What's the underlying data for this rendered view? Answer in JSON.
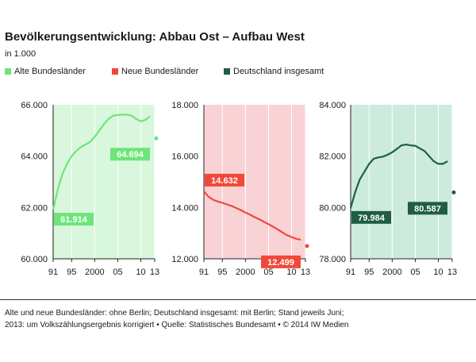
{
  "title": "Bevölkerungsentwicklung: Abbau Ost – Aufbau West",
  "subtitle": "in 1.000",
  "legend": [
    {
      "label": "Alte Bundesländer",
      "color": "#6ee57a"
    },
    {
      "label": "Neue Bundesländer",
      "color": "#f2483a"
    },
    {
      "label": "Deutschland insgesamt",
      "color": "#1f5e45"
    }
  ],
  "footnote_line1": "Alte und neue Bundesländer: ohne Berlin; Deutschland insgesamt: mit Berlin; Stand jeweils Juni;",
  "footnote_line2": "2013: um Volkszählungsergebnis korrigiert • Quelle: Statistisches Bundesamt • © 2014 IW Medien",
  "chart_data": [
    {
      "type": "line",
      "series_name": "Alte Bundesländer",
      "color": "#6ee57a",
      "bg_color": "#d9f7dc",
      "x_tick_labels": [
        "91",
        "95",
        "2000",
        "05",
        "10",
        "13"
      ],
      "x_ticks": [
        1991,
        1995,
        2000,
        2005,
        2010,
        2013
      ],
      "xlim": [
        1991,
        2013
      ],
      "ylim": [
        60000,
        66000
      ],
      "y_ticks": [
        60000,
        62000,
        64000,
        66000
      ],
      "y_tick_labels": [
        "60.000",
        "62.000",
        "64.000",
        "66.000"
      ],
      "x": [
        1991,
        1992,
        1993,
        1994,
        1995,
        1996,
        1997,
        1998,
        1999,
        2000,
        2001,
        2002,
        2003,
        2004,
        2005,
        2006,
        2007,
        2008,
        2009,
        2010,
        2011,
        2012
      ],
      "y": [
        61914,
        62700,
        63300,
        63700,
        64000,
        64200,
        64350,
        64450,
        64550,
        64750,
        65000,
        65250,
        65450,
        65580,
        65600,
        65620,
        65610,
        65580,
        65450,
        65350,
        65420,
        65550
      ],
      "point_2013": 64694,
      "labels": [
        {
          "x": 1991,
          "y": 61914,
          "text": "61.914",
          "side": "below"
        },
        {
          "x": 2013,
          "y": 64694,
          "text": "64.694",
          "side": "left"
        }
      ]
    },
    {
      "type": "line",
      "series_name": "Neue Bundesländer",
      "color": "#f2483a",
      "bg_color": "#f9d2d6",
      "x_tick_labels": [
        "91",
        "95",
        "2000",
        "05",
        "10",
        "13"
      ],
      "x_ticks": [
        1991,
        1995,
        2000,
        2005,
        2010,
        2013
      ],
      "xlim": [
        1991,
        2013
      ],
      "ylim": [
        12000,
        18000
      ],
      "y_ticks": [
        12000,
        14000,
        16000,
        18000
      ],
      "y_tick_labels": [
        "12.000",
        "14.000",
        "16.000",
        "18.000"
      ],
      "x": [
        1991,
        1992,
        1993,
        1994,
        1995,
        1996,
        1997,
        1998,
        1999,
        2000,
        2001,
        2002,
        2003,
        2004,
        2005,
        2006,
        2007,
        2008,
        2009,
        2010,
        2011,
        2012
      ],
      "y": [
        14632,
        14420,
        14300,
        14230,
        14180,
        14120,
        14060,
        13980,
        13900,
        13800,
        13720,
        13620,
        13540,
        13440,
        13350,
        13250,
        13140,
        13030,
        12920,
        12850,
        12780,
        12740
      ],
      "point_2013": 12499,
      "labels": [
        {
          "x": 1991,
          "y": 14632,
          "text": "14.632",
          "side": "above"
        },
        {
          "x": 2013,
          "y": 12499,
          "text": "12.499",
          "side": "left"
        }
      ]
    },
    {
      "type": "line",
      "series_name": "Deutschland insgesamt",
      "color": "#1f5e45",
      "bg_color": "#cdebdc",
      "x_tick_labels": [
        "91",
        "95",
        "2000",
        "05",
        "10",
        "13"
      ],
      "x_ticks": [
        1991,
        1995,
        2000,
        2005,
        2010,
        2013
      ],
      "xlim": [
        1991,
        2013
      ],
      "ylim": [
        78000,
        84000
      ],
      "y_ticks": [
        78000,
        80000,
        82000,
        84000
      ],
      "y_tick_labels": [
        "78.000",
        "80.000",
        "82.000",
        "84.000"
      ],
      "x": [
        1991,
        1992,
        1993,
        1994,
        1995,
        1996,
        1997,
        1998,
        1999,
        2000,
        2001,
        2002,
        2003,
        2004,
        2005,
        2006,
        2007,
        2008,
        2009,
        2010,
        2011,
        2012
      ],
      "y": [
        79984,
        80600,
        81100,
        81400,
        81700,
        81900,
        81950,
        81980,
        82050,
        82150,
        82280,
        82420,
        82450,
        82420,
        82400,
        82300,
        82200,
        82000,
        81800,
        81700,
        81700,
        81800
      ],
      "point_2013": 80587,
      "labels": [
        {
          "x": 1991,
          "y": 79984,
          "text": "79.984",
          "side": "below"
        },
        {
          "x": 2013,
          "y": 80587,
          "text": "80.587",
          "side": "left"
        }
      ]
    }
  ]
}
